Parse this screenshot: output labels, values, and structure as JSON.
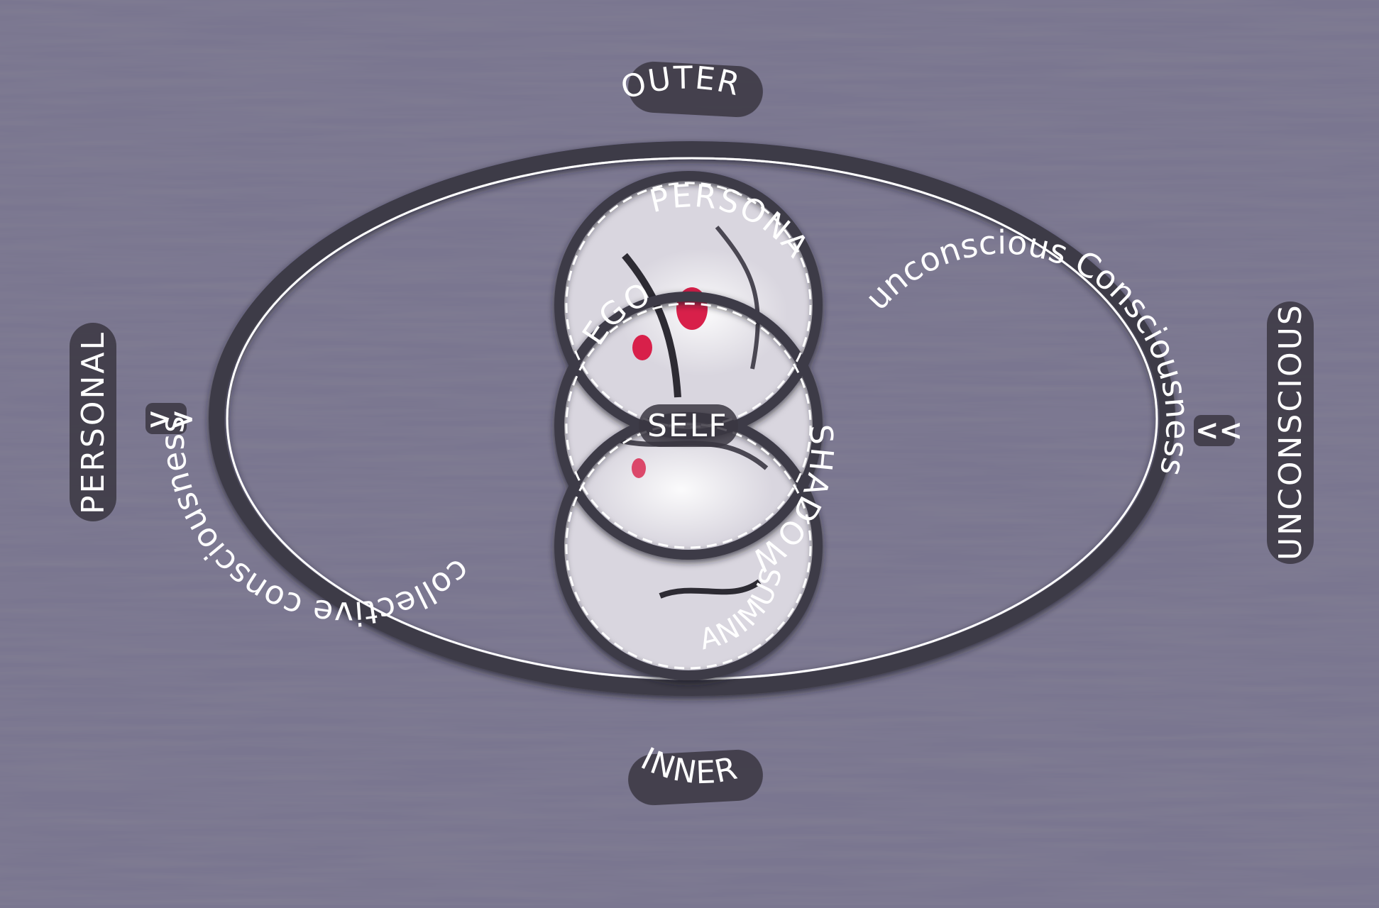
{
  "labels": {
    "outer": "OUTER",
    "inner": "INNER",
    "personal": "PERSONAL",
    "unconscious": "UNCONSCIOUS",
    "arrow_left": ">>",
    "arrow_right": "<<",
    "collective_consciousness": "collective consciousness",
    "unconscious_consciousness": "unconscious Consciousness",
    "persona": "PERSONA",
    "ego": "EGO",
    "self": "SELF",
    "shadow": "SHADOW",
    "animus": "ANIMUS"
  },
  "colors": {
    "background": "#7a7690",
    "ring": "#3e3b47",
    "line": "#ffffff",
    "accent": "#d8204a"
  }
}
